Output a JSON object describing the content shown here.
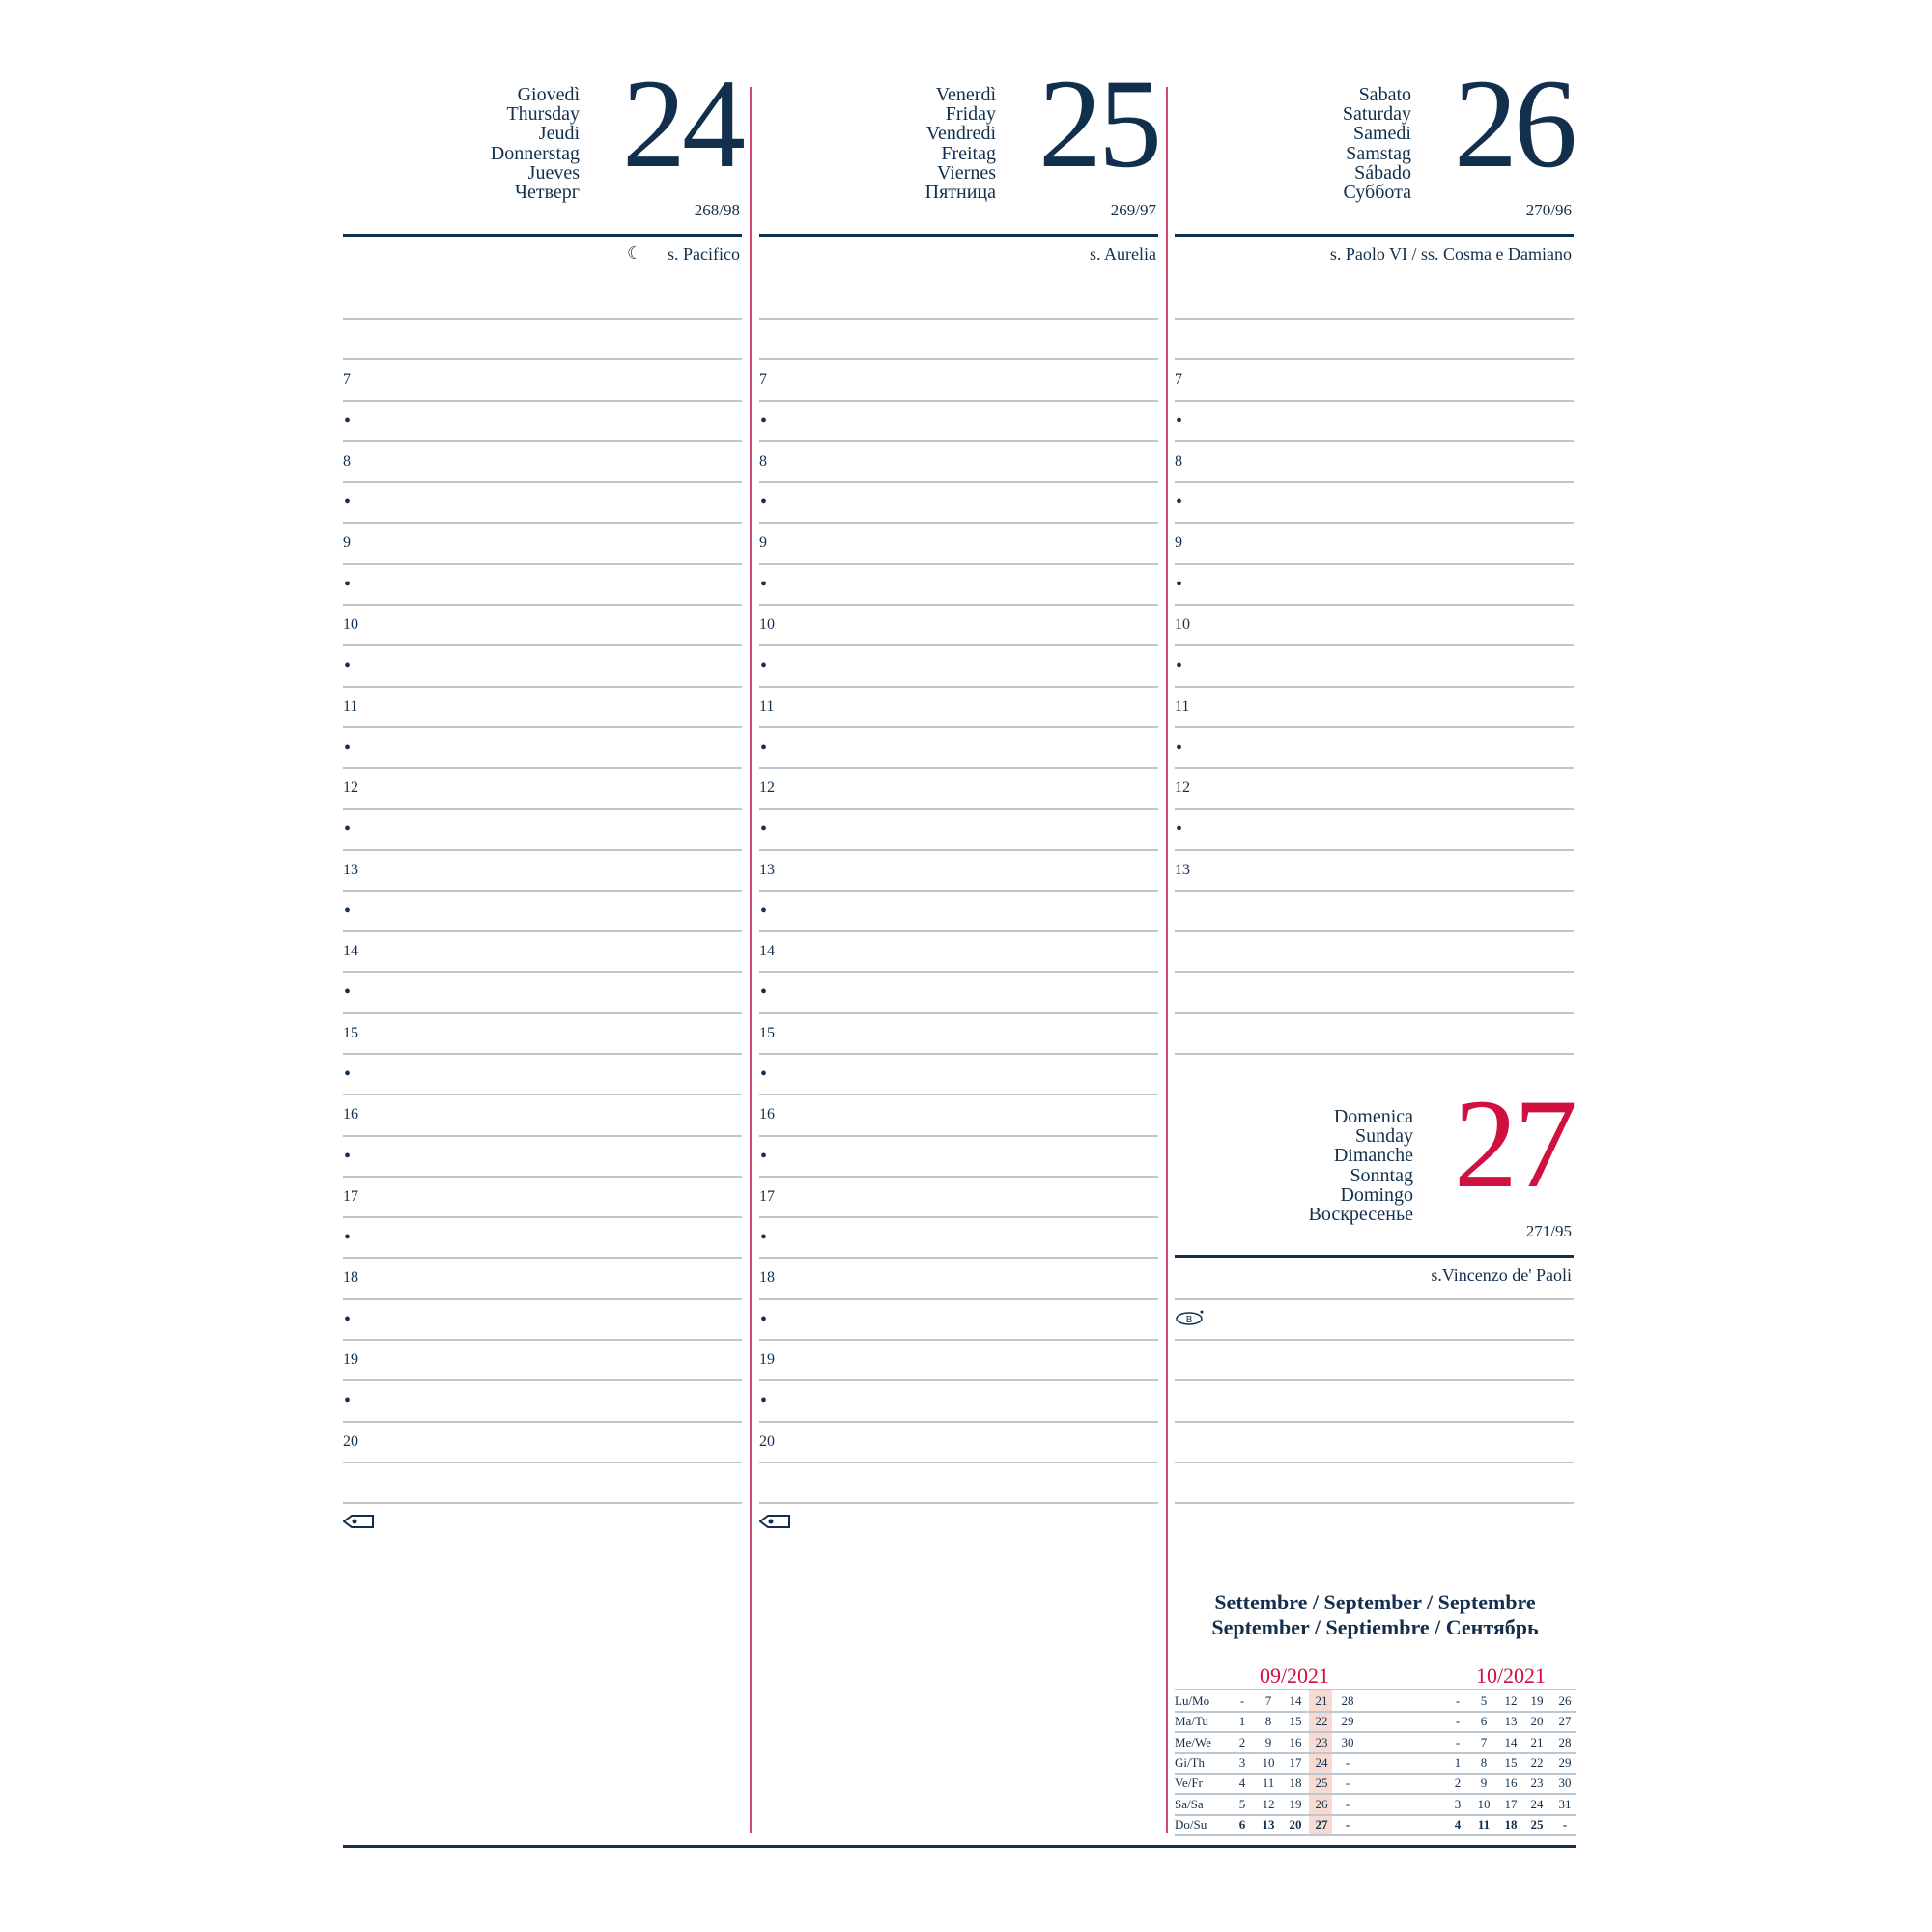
{
  "colors": {
    "navy": "#12304d",
    "red": "#d0103f",
    "rule": "#bcc7cf",
    "highlight": "#f7dbd3"
  },
  "days": [
    {
      "names": [
        "Giovedì",
        "Thursday",
        "Jeudi",
        "Donnerstag",
        "Jueves",
        "Четверг"
      ],
      "number": "24",
      "yday": "268/98",
      "saint": "s. Pacifico",
      "moon_icon": "moon-last-quarter-icon",
      "rows": [
        "",
        "7",
        "•",
        "8",
        "•",
        "9",
        "•",
        "10",
        "•",
        "11",
        "•",
        "12",
        "•",
        "13",
        "•",
        "14",
        "•",
        "15",
        "•",
        "16",
        "•",
        "17",
        "•",
        "18",
        "•",
        "19",
        "•",
        "20",
        ""
      ]
    },
    {
      "names": [
        "Venerdì",
        "Friday",
        "Vendredi",
        "Freitag",
        "Viernes",
        "Пятница"
      ],
      "number": "25",
      "yday": "269/97",
      "saint": "s. Aurelia",
      "rows": [
        "",
        "7",
        "•",
        "8",
        "•",
        "9",
        "•",
        "10",
        "•",
        "11",
        "•",
        "12",
        "•",
        "13",
        "•",
        "14",
        "•",
        "15",
        "•",
        "16",
        "•",
        "17",
        "•",
        "18",
        "•",
        "19",
        "•",
        "20",
        ""
      ]
    },
    {
      "names": [
        "Sabato",
        "Saturday",
        "Samedi",
        "Samstag",
        "Sábado",
        "Суббота"
      ],
      "number": "26",
      "yday": "270/96",
      "saint": "s. Paolo VI  /  ss. Cosma e Damiano",
      "rows": [
        "",
        "7",
        "•",
        "8",
        "•",
        "9",
        "•",
        "10",
        "•",
        "11",
        "•",
        "12",
        "•",
        "13",
        "",
        "",
        "",
        ""
      ]
    },
    {
      "names": [
        "Domenica",
        "Sunday",
        "Dimanche",
        "Sonntag",
        "Domingo",
        "Воскресенье"
      ],
      "number": "27",
      "yday": "271/95",
      "saint": "s.Vincenzo de' Paoli",
      "icon": "b-icon"
    }
  ],
  "month_title": [
    "Settembre / September / Septembre",
    "September / Septiembre / Сентябрь"
  ],
  "mini_calendar": {
    "months": [
      "09/2021",
      "10/2021"
    ],
    "labels": [
      "Lu/Mo",
      "Ma/Tu",
      "Me/We",
      "Gi/Th",
      "Ve/Fr",
      "Sa/Sa",
      "Do/Su"
    ],
    "sep": [
      [
        "-",
        "7",
        "14",
        "21",
        "28"
      ],
      [
        "1",
        "8",
        "15",
        "22",
        "29"
      ],
      [
        "2",
        "9",
        "16",
        "23",
        "30"
      ],
      [
        "3",
        "10",
        "17",
        "24",
        "-"
      ],
      [
        "4",
        "11",
        "18",
        "25",
        "-"
      ],
      [
        "5",
        "12",
        "19",
        "26",
        "-"
      ],
      [
        "6",
        "13",
        "20",
        "27",
        "-"
      ]
    ],
    "oct": [
      [
        "-",
        "5",
        "12",
        "19",
        "26"
      ],
      [
        "-",
        "6",
        "13",
        "20",
        "27"
      ],
      [
        "-",
        "7",
        "14",
        "21",
        "28"
      ],
      [
        "1",
        "8",
        "15",
        "22",
        "29"
      ],
      [
        "2",
        "9",
        "16",
        "23",
        "30"
      ],
      [
        "3",
        "10",
        "17",
        "24",
        "31"
      ],
      [
        "4",
        "11",
        "18",
        "25",
        "-"
      ]
    ],
    "highlighted_week": "21-27"
  }
}
